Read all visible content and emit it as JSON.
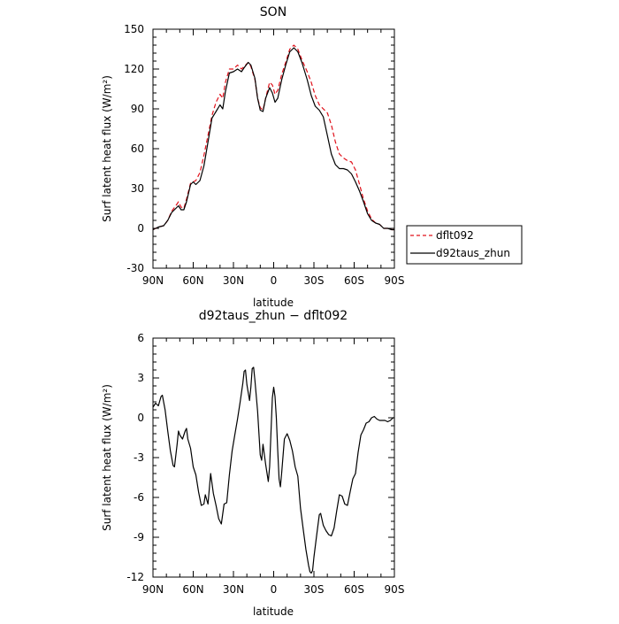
{
  "chart_data": [
    {
      "type": "line",
      "title": "SON",
      "xlabel": "latitude",
      "ylabel": "Surf latent heat flux (W/m²)",
      "ylim": [
        -30,
        150
      ],
      "yticks": [
        -30,
        0,
        30,
        60,
        90,
        120,
        150
      ],
      "xlim": [
        90,
        -90
      ],
      "xtick_labels": [
        "90N",
        "60N",
        "30N",
        "0",
        "30S",
        "60S",
        "90S"
      ],
      "grid": false,
      "legend": "outside-right",
      "series": [
        {
          "name": "dflt092",
          "color": "#e0101a",
          "dash": true,
          "points": [
            [
              90,
              -1
            ],
            [
              86,
              1
            ],
            [
              82,
              2
            ],
            [
              79,
              6
            ],
            [
              76,
              13
            ],
            [
              73,
              17
            ],
            [
              71,
              20
            ],
            [
              69,
              16
            ],
            [
              67,
              15
            ],
            [
              65,
              22
            ],
            [
              62,
              34
            ],
            [
              60,
              35
            ],
            [
              58,
              36
            ],
            [
              55,
              42
            ],
            [
              52,
              55
            ],
            [
              49,
              70
            ],
            [
              46,
              85
            ],
            [
              43,
              95
            ],
            [
              40,
              101
            ],
            [
              38,
              98
            ],
            [
              36,
              110
            ],
            [
              33,
              120
            ],
            [
              30,
              120
            ],
            [
              27,
              123
            ],
            [
              24,
              120
            ],
            [
              22,
              122
            ],
            [
              19,
              125
            ],
            [
              17,
              122
            ],
            [
              14,
              112
            ],
            [
              12,
              98
            ],
            [
              10,
              91
            ],
            [
              8,
              89
            ],
            [
              6,
              98
            ],
            [
              3,
              110
            ],
            [
              1,
              108
            ],
            [
              -1,
              101
            ],
            [
              -3,
              104
            ],
            [
              -6,
              116
            ],
            [
              -9,
              125
            ],
            [
              -12,
              135
            ],
            [
              -15,
              138
            ],
            [
              -18,
              135
            ],
            [
              -21,
              127
            ],
            [
              -25,
              118
            ],
            [
              -28,
              110
            ],
            [
              -31,
              100
            ],
            [
              -34,
              93
            ],
            [
              -37,
              90
            ],
            [
              -40,
              87
            ],
            [
              -43,
              78
            ],
            [
              -46,
              65
            ],
            [
              -49,
              56
            ],
            [
              -52,
              53
            ],
            [
              -55,
              51
            ],
            [
              -58,
              50
            ],
            [
              -61,
              44
            ],
            [
              -64,
              33
            ],
            [
              -67,
              22
            ],
            [
              -70,
              13
            ],
            [
              -73,
              7
            ],
            [
              -76,
              4
            ],
            [
              -79,
              3
            ],
            [
              -82,
              0
            ],
            [
              -85,
              0
            ],
            [
              -88,
              -1
            ],
            [
              -90,
              -1
            ]
          ]
        },
        {
          "name": "d92taus_zhun",
          "color": "#000000",
          "dash": false,
          "points": [
            [
              90,
              -1
            ],
            [
              86,
              1
            ],
            [
              82,
              2
            ],
            [
              79,
              6
            ],
            [
              76,
              12
            ],
            [
              73,
              15
            ],
            [
              71,
              17
            ],
            [
              69,
              14
            ],
            [
              67,
              14
            ],
            [
              65,
              20
            ],
            [
              62,
              33
            ],
            [
              60,
              35
            ],
            [
              58,
              33
            ],
            [
              55,
              36
            ],
            [
              52,
              47
            ],
            [
              49,
              65
            ],
            [
              46,
              83
            ],
            [
              43,
              88
            ],
            [
              40,
              93
            ],
            [
              38,
              90
            ],
            [
              36,
              103
            ],
            [
              33,
              117
            ],
            [
              30,
              118
            ],
            [
              27,
              120
            ],
            [
              24,
              118
            ],
            [
              22,
              121
            ],
            [
              19,
              125
            ],
            [
              17,
              123
            ],
            [
              14,
              113
            ],
            [
              12,
              98
            ],
            [
              10,
              89
            ],
            [
              8,
              88
            ],
            [
              6,
              98
            ],
            [
              3,
              106
            ],
            [
              1,
              102
            ],
            [
              -1,
              95
            ],
            [
              -3,
              98
            ],
            [
              -6,
              112
            ],
            [
              -9,
              123
            ],
            [
              -12,
              133
            ],
            [
              -15,
              136
            ],
            [
              -18,
              133
            ],
            [
              -21,
              125
            ],
            [
              -25,
              112
            ],
            [
              -28,
              100
            ],
            [
              -31,
              92
            ],
            [
              -34,
              89
            ],
            [
              -37,
              84
            ],
            [
              -40,
              70
            ],
            [
              -43,
              56
            ],
            [
              -46,
              48
            ],
            [
              -49,
              45
            ],
            [
              -52,
              45
            ],
            [
              -55,
              44
            ],
            [
              -58,
              41
            ],
            [
              -61,
              35
            ],
            [
              -64,
              28
            ],
            [
              -67,
              20
            ],
            [
              -70,
              11
            ],
            [
              -73,
              6
            ],
            [
              -76,
              4
            ],
            [
              -79,
              3
            ],
            [
              -82,
              0
            ],
            [
              -85,
              0
            ],
            [
              -88,
              -1
            ],
            [
              -90,
              -1
            ]
          ]
        }
      ]
    },
    {
      "type": "line",
      "title": "d92taus_zhun − dflt092",
      "xlabel": "latitude",
      "ylabel": "Surf latent heat flux (W/m²)",
      "ylim": [
        -12,
        6
      ],
      "yticks": [
        -12,
        -9,
        -6,
        -3,
        0,
        3,
        6
      ],
      "xlim": [
        90,
        -90
      ],
      "xtick_labels": [
        "90N",
        "60N",
        "30N",
        "0",
        "30S",
        "60S",
        "90S"
      ],
      "grid": false,
      "series": [
        {
          "color": "#000000",
          "dash": false,
          "points": [
            [
              90,
              0.8
            ],
            [
              88,
              1.1
            ],
            [
              86,
              0.9
            ],
            [
              84,
              1.6
            ],
            [
              83,
              1.7
            ],
            [
              81,
              0.6
            ],
            [
              79,
              -1.0
            ],
            [
              77,
              -2.5
            ],
            [
              75,
              -3.6
            ],
            [
              74,
              -3.7
            ],
            [
              72,
              -2.0
            ],
            [
              71,
              -1.0
            ],
            [
              70,
              -1.3
            ],
            [
              68,
              -1.6
            ],
            [
              66,
              -1.0
            ],
            [
              65,
              -0.8
            ],
            [
              64,
              -1.6
            ],
            [
              62,
              -2.3
            ],
            [
              60,
              -3.7
            ],
            [
              58,
              -4.3
            ],
            [
              56,
              -5.6
            ],
            [
              54,
              -6.6
            ],
            [
              52,
              -6.5
            ],
            [
              51,
              -5.8
            ],
            [
              49,
              -6.5
            ],
            [
              47,
              -4.2
            ],
            [
              45,
              -5.7
            ],
            [
              43,
              -6.6
            ],
            [
              41,
              -7.6
            ],
            [
              39,
              -8.0
            ],
            [
              37,
              -6.5
            ],
            [
              35,
              -6.4
            ],
            [
              33,
              -4.3
            ],
            [
              31,
              -2.5
            ],
            [
              29,
              -1.3
            ],
            [
              27,
              -0.1
            ],
            [
              25,
              1.2
            ],
            [
              23,
              2.6
            ],
            [
              22,
              3.5
            ],
            [
              21,
              3.6
            ],
            [
              20,
              2.5
            ],
            [
              18,
              1.3
            ],
            [
              17,
              2.3
            ],
            [
              16,
              3.7
            ],
            [
              15,
              3.8
            ],
            [
              14,
              2.8
            ],
            [
              12,
              0.5
            ],
            [
              10,
              -2.8
            ],
            [
              9,
              -3.2
            ],
            [
              8,
              -2.0
            ],
            [
              6,
              -3.5
            ],
            [
              4,
              -4.8
            ],
            [
              3,
              -3.7
            ],
            [
              2,
              -1.0
            ],
            [
              1,
              1.5
            ],
            [
              0,
              2.3
            ],
            [
              -1,
              1.6
            ],
            [
              -2,
              0.0
            ],
            [
              -3,
              -2.5
            ],
            [
              -4,
              -4.6
            ],
            [
              -5,
              -5.2
            ],
            [
              -6,
              -4.1
            ],
            [
              -8,
              -1.6
            ],
            [
              -10,
              -1.2
            ],
            [
              -12,
              -1.7
            ],
            [
              -14,
              -2.5
            ],
            [
              -16,
              -3.7
            ],
            [
              -18,
              -4.4
            ],
            [
              -20,
              -6.8
            ],
            [
              -22,
              -8.4
            ],
            [
              -24,
              -9.9
            ],
            [
              -26,
              -11.1
            ],
            [
              -27,
              -11.6
            ],
            [
              -28,
              -11.7
            ],
            [
              -29,
              -11.5
            ],
            [
              -30,
              -10.5
            ],
            [
              -32,
              -8.9
            ],
            [
              -34,
              -7.3
            ],
            [
              -35,
              -7.2
            ],
            [
              -37,
              -8.1
            ],
            [
              -39,
              -8.5
            ],
            [
              -41,
              -8.8
            ],
            [
              -43,
              -8.9
            ],
            [
              -45,
              -8.3
            ],
            [
              -47,
              -7.0
            ],
            [
              -49,
              -5.8
            ],
            [
              -51,
              -5.9
            ],
            [
              -53,
              -6.5
            ],
            [
              -55,
              -6.6
            ],
            [
              -57,
              -5.6
            ],
            [
              -59,
              -4.6
            ],
            [
              -61,
              -4.2
            ],
            [
              -63,
              -2.6
            ],
            [
              -65,
              -1.3
            ],
            [
              -67,
              -0.9
            ],
            [
              -69,
              -0.4
            ],
            [
              -71,
              -0.3
            ],
            [
              -73,
              0.0
            ],
            [
              -75,
              0.1
            ],
            [
              -77,
              -0.1
            ],
            [
              -79,
              -0.2
            ],
            [
              -81,
              -0.2
            ],
            [
              -83,
              -0.2
            ],
            [
              -85,
              -0.3
            ],
            [
              -87,
              -0.2
            ],
            [
              -89,
              0.0
            ],
            [
              -90,
              0.0
            ]
          ]
        }
      ]
    }
  ]
}
